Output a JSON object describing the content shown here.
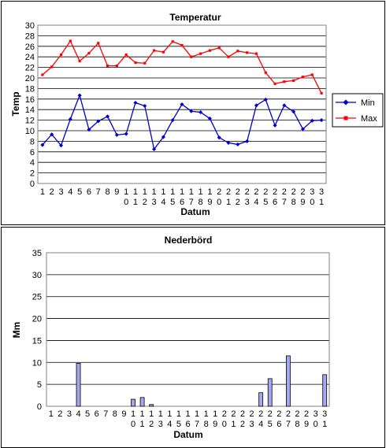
{
  "chart_data": [
    {
      "type": "line",
      "title": "Temperatur",
      "xlabel": "Datum",
      "ylabel": "Temp",
      "ylim": [
        0,
        30
      ],
      "yticks": [
        "0",
        "2",
        "4",
        "6",
        "8",
        "10",
        "12",
        "14",
        "16",
        "18",
        "20",
        "22",
        "24",
        "26",
        "28",
        "30"
      ],
      "x": [
        "1",
        "2",
        "3",
        "4",
        "5",
        "6",
        "7",
        "8",
        "9",
        "10",
        "11",
        "12",
        "13",
        "14",
        "15",
        "16",
        "17",
        "18",
        "19",
        "20",
        "21",
        "22",
        "23",
        "24",
        "25",
        "26",
        "27",
        "28",
        "29",
        "30",
        "31"
      ],
      "grid": "horizontal",
      "legend": "right",
      "series": [
        {
          "name": "Min",
          "color": "#0000cc",
          "values": [
            7.3,
            9.3,
            7.2,
            12.2,
            16.7,
            10.2,
            11.8,
            12.7,
            9.2,
            9.4,
            15.3,
            14.7,
            6.5,
            8.8,
            12.0,
            15.0,
            13.7,
            13.5,
            12.3,
            8.7,
            7.7,
            7.4,
            8.0,
            14.8,
            15.9,
            11.0,
            14.8,
            13.6,
            10.3,
            11.9,
            12.0
          ]
        },
        {
          "name": "Max",
          "color": "#ff0000",
          "values": [
            20.6,
            22.1,
            24.4,
            27.0,
            23.2,
            24.7,
            26.6,
            22.3,
            22.3,
            24.4,
            22.9,
            22.8,
            25.2,
            24.9,
            26.9,
            26.2,
            24.0,
            24.6,
            25.2,
            25.7,
            24.0,
            25.1,
            24.8,
            24.6,
            21.0,
            18.9,
            19.3,
            19.5,
            20.2,
            20.6,
            17.1
          ]
        }
      ]
    },
    {
      "type": "bar",
      "title": "Nederbörd",
      "xlabel": "Datum",
      "ylabel": "Mm",
      "ylim": [
        0,
        35
      ],
      "yticks": [
        "0",
        "5",
        "10",
        "15",
        "20",
        "25",
        "30",
        "35"
      ],
      "categories": [
        "1",
        "2",
        "3",
        "4",
        "5",
        "6",
        "7",
        "8",
        "9",
        "10",
        "11",
        "12",
        "13",
        "14",
        "15",
        "16",
        "17",
        "18",
        "19",
        "20",
        "21",
        "22",
        "23",
        "24",
        "25",
        "26",
        "27",
        "28",
        "29",
        "30",
        "31"
      ],
      "grid": "horizontal",
      "bar_color": "#a3a8f0",
      "values": [
        0,
        0,
        0,
        9.8,
        0,
        0,
        0,
        0,
        0,
        1.6,
        2.0,
        0.4,
        0,
        0,
        0,
        0,
        0,
        0,
        0,
        0,
        0,
        0,
        0,
        3.1,
        6.3,
        0,
        11.5,
        0,
        0,
        0,
        7.2
      ]
    }
  ]
}
